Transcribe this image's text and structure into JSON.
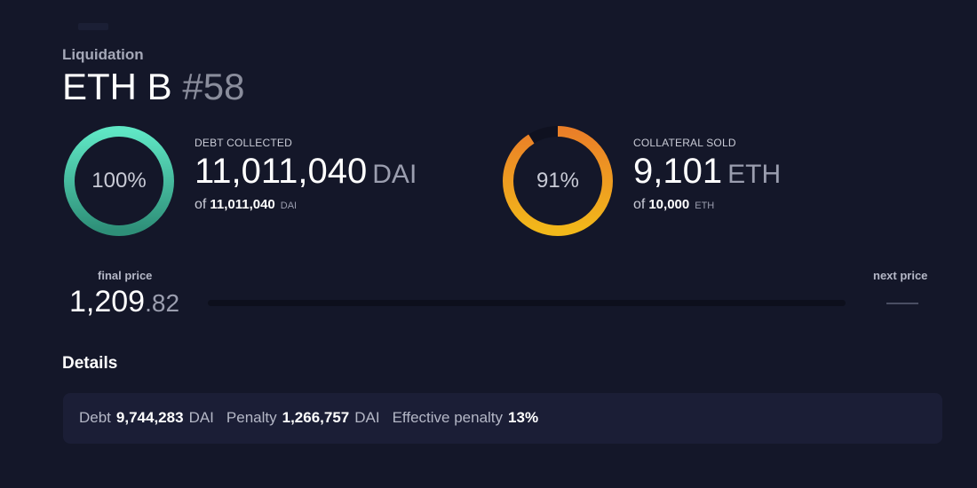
{
  "header": {
    "eyebrow": "Liquidation",
    "title_main": "ETH B",
    "title_id": "#58"
  },
  "debt": {
    "percent_label": "100%",
    "percent_value": 100,
    "label": "DEBT COLLECTED",
    "collected": "11,011,040",
    "unit": "DAI",
    "of_label": "of",
    "total": "11,011,040",
    "total_unit": "DAI"
  },
  "collateral": {
    "percent_label": "91%",
    "percent_value": 91,
    "label": "COLLATERAL SOLD",
    "sold": "9,101",
    "unit": "ETH",
    "of_label": "of",
    "total": "10,000",
    "total_unit": "ETH"
  },
  "price": {
    "final_label": "final price",
    "final_int": "1,209",
    "final_dec": ".82",
    "next_label": "next price"
  },
  "details": {
    "heading": "Details",
    "debt_label": "Debt",
    "debt_value": "9,744,283",
    "debt_unit": "DAI",
    "penalty_label": "Penalty",
    "penalty_value": "1,266,757",
    "penalty_unit": "DAI",
    "eff_label": "Effective penalty",
    "eff_value": "13%"
  },
  "colors": {
    "background": "#141729",
    "debt_ring_start": "#2e8f78",
    "debt_ring_end": "#5fe6c4",
    "coll_ring_start": "#f2b81a",
    "coll_ring_end": "#ea7f28",
    "ring_track": "#0f1120"
  }
}
